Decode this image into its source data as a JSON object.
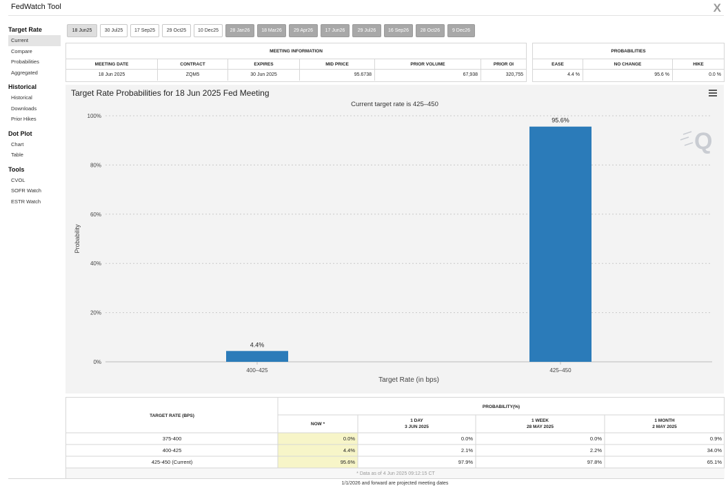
{
  "app": {
    "title": "FedWatch Tool"
  },
  "sidebar": [
    {
      "heading": "Target Rate",
      "items": [
        "Current",
        "Compare",
        "Probabilities",
        "Aggregated"
      ],
      "active": 0
    },
    {
      "heading": "Historical",
      "items": [
        "Historical",
        "Downloads",
        "Prior Hikes"
      ],
      "active": -1
    },
    {
      "heading": "Dot Plot",
      "items": [
        "Chart",
        "Table"
      ],
      "active": -1
    },
    {
      "heading": "Tools",
      "items": [
        "CVOL",
        "SOFR Watch",
        "ESTR Watch"
      ],
      "active": -1
    }
  ],
  "meeting_tabs": [
    {
      "label": "18 Jun25",
      "state": "selected"
    },
    {
      "label": "30 Jul25",
      "state": "normal"
    },
    {
      "label": "17 Sep25",
      "state": "normal"
    },
    {
      "label": "29 Oct25",
      "state": "normal"
    },
    {
      "label": "10 Dec25",
      "state": "normal"
    },
    {
      "label": "28 Jan26",
      "state": "projected"
    },
    {
      "label": "18 Mar26",
      "state": "projected"
    },
    {
      "label": "29 Apr26",
      "state": "projected"
    },
    {
      "label": "17 Jun26",
      "state": "projected"
    },
    {
      "label": "29 Jul26",
      "state": "projected"
    },
    {
      "label": "16 Sep26",
      "state": "projected"
    },
    {
      "label": "28 Oct26",
      "state": "projected"
    },
    {
      "label": "9 Dec26",
      "state": "projected"
    }
  ],
  "meeting_info": {
    "title": "MEETING INFORMATION",
    "headers": [
      "MEETING DATE",
      "CONTRACT",
      "EXPIRES",
      "MID PRICE",
      "PRIOR VOLUME",
      "PRIOR OI"
    ],
    "values": [
      "18 Jun 2025",
      "ZQM5",
      "30 Jun 2025",
      "95.6738",
      "67,938",
      "320,755"
    ]
  },
  "probabilities": {
    "title": "PROBABILITIES",
    "headers": [
      "EASE",
      "NO CHANGE",
      "HIKE"
    ],
    "values": [
      "4.4 %",
      "95.6 %",
      "0.0 %"
    ]
  },
  "chart_data": {
    "type": "bar",
    "title": "Target Rate Probabilities for 18 Jun 2025 Fed Meeting",
    "subtitle": "Current target rate is 425–450",
    "categories": [
      "400–425",
      "425–450"
    ],
    "values": [
      4.4,
      95.6
    ],
    "data_labels": [
      "4.4%",
      "95.6%"
    ],
    "xlabel": "Target Rate (in bps)",
    "ylabel": "Probability",
    "ylim": [
      0,
      100
    ],
    "yticks": [
      0,
      20,
      40,
      60,
      80,
      100
    ],
    "ytick_labels": [
      "0%",
      "20%",
      "40%",
      "60%",
      "80%",
      "100%"
    ],
    "grid": true,
    "bar_color": "#2b7bb9",
    "watermark": "Q"
  },
  "rate_table": {
    "target_header": "TARGET RATE (BPS)",
    "prob_header": "PROBABILITY(%)",
    "columns": [
      {
        "line1": "NOW *",
        "line2": ""
      },
      {
        "line1": "1 DAY",
        "line2": "3 JUN 2025"
      },
      {
        "line1": "1 WEEK",
        "line2": "28 MAY 2025"
      },
      {
        "line1": "1 MONTH",
        "line2": "2 MAY 2025"
      }
    ],
    "rows": [
      {
        "rate": "375-400",
        "values": [
          "0.0%",
          "0.0%",
          "0.0%",
          "0.9%"
        ]
      },
      {
        "rate": "400-425",
        "values": [
          "4.4%",
          "2.1%",
          "2.2%",
          "34.0%"
        ]
      },
      {
        "rate": "425-450 (Current)",
        "values": [
          "95.6%",
          "97.9%",
          "97.8%",
          "65.1%"
        ]
      }
    ],
    "note": "* Data as of 4 Jun 2025 09:12:15 CT",
    "now_highlight": "#f7f5c8"
  },
  "footer": "1/1/2026 and forward are projected meeting dates"
}
